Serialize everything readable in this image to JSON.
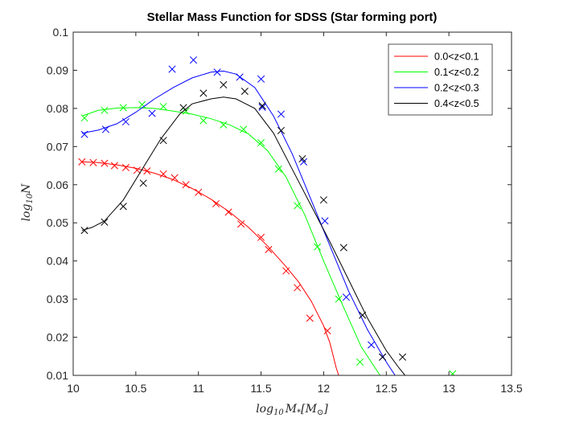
{
  "chart_data": {
    "type": "line",
    "title": "Stellar Mass Function for SDSS (Star forming port)",
    "xlabel": "log10 M*[M⊙]",
    "ylabel": "log10 N",
    "xlim": [
      10,
      13.5
    ],
    "ylim": [
      0.01,
      0.1
    ],
    "xticks": [
      10,
      10.5,
      11,
      11.5,
      12,
      12.5,
      13,
      13.5
    ],
    "xtick_labels": [
      "10",
      "10.5",
      "11",
      "11.5",
      "12",
      "12.5",
      "13",
      "13.5"
    ],
    "yticks": [
      0.01,
      0.02,
      0.03,
      0.04,
      0.05,
      0.06,
      0.07,
      0.08,
      0.09,
      0.1
    ],
    "ytick_labels": [
      "0.01",
      "0.02",
      "0.03",
      "0.04",
      "0.05",
      "0.06",
      "0.07",
      "0.08",
      "0.09",
      "0.1"
    ],
    "legend_position": "top-right",
    "series": [
      {
        "name": "0.0<z<0.1",
        "color": "#ff0000",
        "markers": [
          [
            10.07,
            0.066
          ],
          [
            10.16,
            0.0658
          ],
          [
            10.25,
            0.0656
          ],
          [
            10.33,
            0.065
          ],
          [
            10.42,
            0.0645
          ],
          [
            10.51,
            0.0638
          ],
          [
            10.59,
            0.0636
          ],
          [
            10.72,
            0.0628
          ],
          [
            10.81,
            0.0618
          ],
          [
            10.9,
            0.06
          ],
          [
            11.0,
            0.058
          ],
          [
            11.14,
            0.055
          ],
          [
            11.24,
            0.0528
          ],
          [
            11.34,
            0.0497
          ],
          [
            11.5,
            0.0462
          ],
          [
            11.56,
            0.043
          ],
          [
            11.7,
            0.0374
          ],
          [
            11.79,
            0.033
          ],
          [
            11.89,
            0.025
          ],
          [
            12.03,
            0.0217
          ]
        ],
        "line": [
          [
            10.07,
            0.066
          ],
          [
            10.2,
            0.0658
          ],
          [
            10.35,
            0.0652
          ],
          [
            10.5,
            0.0643
          ],
          [
            10.65,
            0.063
          ],
          [
            10.8,
            0.0613
          ],
          [
            10.95,
            0.059
          ],
          [
            11.1,
            0.0562
          ],
          [
            11.25,
            0.0528
          ],
          [
            11.4,
            0.0488
          ],
          [
            11.55,
            0.044
          ],
          [
            11.7,
            0.0385
          ],
          [
            11.8,
            0.0345
          ],
          [
            11.9,
            0.0295
          ],
          [
            12.0,
            0.023
          ],
          [
            12.05,
            0.0185
          ],
          [
            12.1,
            0.012
          ],
          [
            12.12,
            0.01
          ]
        ]
      },
      {
        "name": "0.1<z<0.2",
        "color": "#00ff00",
        "markers": [
          [
            10.09,
            0.0775
          ],
          [
            10.25,
            0.0795
          ],
          [
            10.4,
            0.0802
          ],
          [
            10.55,
            0.081
          ],
          [
            10.72,
            0.0805
          ],
          [
            10.9,
            0.0793
          ],
          [
            11.04,
            0.0768
          ],
          [
            11.2,
            0.0757
          ],
          [
            11.36,
            0.0745
          ],
          [
            11.5,
            0.071
          ],
          [
            11.64,
            0.0641
          ],
          [
            11.79,
            0.0545
          ],
          [
            11.95,
            0.0437
          ],
          [
            12.12,
            0.03
          ],
          [
            12.29,
            0.0135
          ],
          [
            13.03,
            0.0104
          ]
        ],
        "line": [
          [
            10.07,
            0.078
          ],
          [
            10.2,
            0.0795
          ],
          [
            10.35,
            0.0801
          ],
          [
            10.5,
            0.0802
          ],
          [
            10.65,
            0.08
          ],
          [
            10.8,
            0.0793
          ],
          [
            10.95,
            0.0785
          ],
          [
            11.1,
            0.0773
          ],
          [
            11.25,
            0.0757
          ],
          [
            11.4,
            0.0733
          ],
          [
            11.55,
            0.069
          ],
          [
            11.7,
            0.062
          ],
          [
            11.85,
            0.052
          ],
          [
            12.0,
            0.04
          ],
          [
            12.15,
            0.0285
          ],
          [
            12.3,
            0.0175
          ],
          [
            12.45,
            0.01
          ]
        ]
      },
      {
        "name": "0.2<z<0.3",
        "color": "#0000ff",
        "markers": [
          [
            10.09,
            0.0732
          ],
          [
            10.26,
            0.0745
          ],
          [
            10.42,
            0.0765
          ],
          [
            10.63,
            0.0787
          ],
          [
            10.79,
            0.0903
          ],
          [
            10.96,
            0.0927
          ],
          [
            11.15,
            0.0895
          ],
          [
            11.33,
            0.0882
          ],
          [
            11.5,
            0.0877
          ],
          [
            11.51,
            0.0803
          ],
          [
            11.66,
            0.0785
          ],
          [
            11.84,
            0.066
          ],
          [
            12.01,
            0.0505
          ],
          [
            12.18,
            0.0305
          ],
          [
            12.38,
            0.018
          ],
          [
            12.47,
            0.0148
          ]
        ],
        "line": [
          [
            10.07,
            0.0735
          ],
          [
            10.2,
            0.0743
          ],
          [
            10.35,
            0.076
          ],
          [
            10.5,
            0.079
          ],
          [
            10.65,
            0.0825
          ],
          [
            10.8,
            0.0855
          ],
          [
            10.95,
            0.088
          ],
          [
            11.1,
            0.0895
          ],
          [
            11.2,
            0.0898
          ],
          [
            11.3,
            0.089
          ],
          [
            11.45,
            0.0855
          ],
          [
            11.6,
            0.078
          ],
          [
            11.75,
            0.068
          ],
          [
            11.9,
            0.056
          ],
          [
            12.05,
            0.044
          ],
          [
            12.2,
            0.032
          ],
          [
            12.35,
            0.022
          ],
          [
            12.5,
            0.0135
          ],
          [
            12.57,
            0.01
          ]
        ]
      },
      {
        "name": "0.4<z<0.5",
        "color": "#000000",
        "markers": [
          [
            10.09,
            0.048
          ],
          [
            10.25,
            0.0502
          ],
          [
            10.4,
            0.0543
          ],
          [
            10.56,
            0.0604
          ],
          [
            10.72,
            0.0716
          ],
          [
            10.88,
            0.0802
          ],
          [
            11.04,
            0.084
          ],
          [
            11.2,
            0.0862
          ],
          [
            11.37,
            0.0845
          ],
          [
            11.51,
            0.0807
          ],
          [
            11.66,
            0.0742
          ],
          [
            11.83,
            0.0668
          ],
          [
            12.0,
            0.056
          ],
          [
            12.16,
            0.0435
          ],
          [
            12.31,
            0.0258
          ],
          [
            12.47,
            0.0148
          ],
          [
            12.63,
            0.0148
          ]
        ],
        "line": [
          [
            10.07,
            0.048
          ],
          [
            10.15,
            0.0488
          ],
          [
            10.25,
            0.0505
          ],
          [
            10.4,
            0.056
          ],
          [
            10.55,
            0.064
          ],
          [
            10.7,
            0.072
          ],
          [
            10.85,
            0.0785
          ],
          [
            10.95,
            0.0812
          ],
          [
            11.1,
            0.0825
          ],
          [
            11.2,
            0.083
          ],
          [
            11.3,
            0.0825
          ],
          [
            11.45,
            0.08
          ],
          [
            11.6,
            0.0735
          ],
          [
            11.75,
            0.064
          ],
          [
            11.9,
            0.0545
          ],
          [
            12.05,
            0.045
          ],
          [
            12.2,
            0.035
          ],
          [
            12.35,
            0.025
          ],
          [
            12.5,
            0.0165
          ],
          [
            12.6,
            0.012
          ],
          [
            12.65,
            0.01
          ]
        ]
      }
    ]
  }
}
